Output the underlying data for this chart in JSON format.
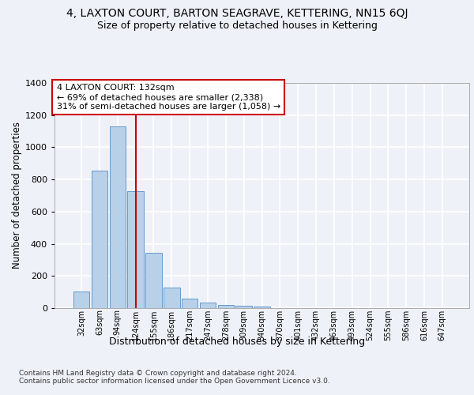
{
  "title_line1": "4, LAXTON COURT, BARTON SEAGRAVE, KETTERING, NN15 6QJ",
  "title_line2": "Size of property relative to detached houses in Kettering",
  "xlabel": "Distribution of detached houses by size in Kettering",
  "ylabel": "Number of detached properties",
  "footnote": "Contains HM Land Registry data © Crown copyright and database right 2024.\nContains public sector information licensed under the Open Government Licence v3.0.",
  "categories": [
    "32sqm",
    "63sqm",
    "94sqm",
    "124sqm",
    "155sqm",
    "186sqm",
    "217sqm",
    "247sqm",
    "278sqm",
    "309sqm",
    "340sqm",
    "370sqm",
    "401sqm",
    "432sqm",
    "463sqm",
    "493sqm",
    "524sqm",
    "555sqm",
    "586sqm",
    "616sqm",
    "647sqm"
  ],
  "values": [
    105,
    855,
    1130,
    725,
    345,
    130,
    58,
    32,
    20,
    15,
    10,
    0,
    0,
    0,
    0,
    0,
    0,
    0,
    0,
    0,
    0
  ],
  "bar_color": "#b8d0e8",
  "bar_edge_color": "#6699cc",
  "vline_x": 3.0,
  "vline_color": "#cc0000",
  "annotation_text": "4 LAXTON COURT: 132sqm\n← 69% of detached houses are smaller (2,338)\n31% of semi-detached houses are larger (1,058) →",
  "annotation_box_color": "#ffffff",
  "annotation_box_edge_color": "#cc0000",
  "ylim": [
    0,
    1400
  ],
  "yticks": [
    0,
    200,
    400,
    600,
    800,
    1000,
    1200,
    1400
  ],
  "background_color": "#eef2f8",
  "plot_bg_color": "#eef2f8",
  "grid_color": "#ffffff",
  "title1_fontsize": 10,
  "title2_fontsize": 9,
  "xlabel_fontsize": 9,
  "ylabel_fontsize": 8.5,
  "tick_fontsize": 8
}
